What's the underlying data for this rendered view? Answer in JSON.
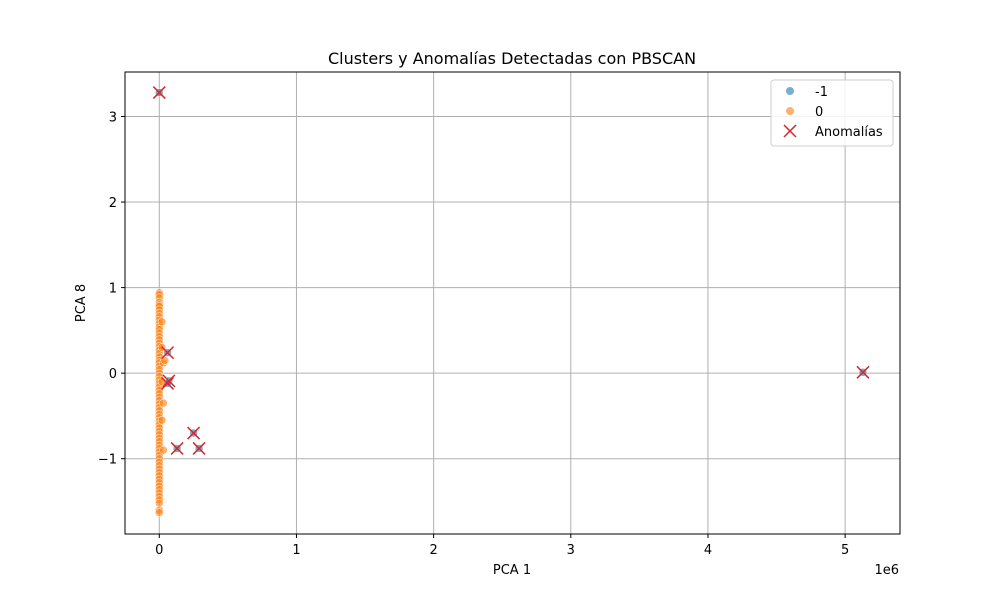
{
  "chart_data": {
    "type": "scatter",
    "title": "Clusters y Anomalías Detectadas con PBSCAN",
    "xlabel": "PCA 1",
    "ylabel": "PCA 8",
    "x_offset_text": "1e6",
    "xlim": [
      -0.25,
      5.4
    ],
    "ylim": [
      -1.88,
      3.52
    ],
    "x_ticks": [
      0,
      1,
      2,
      3,
      4,
      5
    ],
    "x_tick_labels": [
      "0",
      "1",
      "2",
      "3",
      "4",
      "5"
    ],
    "y_ticks": [
      -1,
      0,
      1,
      2,
      3
    ],
    "y_tick_labels": [
      "−1",
      "0",
      "1",
      "2",
      "3"
    ],
    "grid": true,
    "legend_position": "top-right",
    "series": [
      {
        "name": "-1",
        "marker": "circle",
        "color": "#1f77b4",
        "points": [
          [
            0.0,
            3.28
          ],
          [
            0.06,
            0.24
          ],
          [
            0.07,
            -0.09
          ],
          [
            0.06,
            -0.12
          ],
          [
            0.13,
            -0.88
          ],
          [
            0.25,
            -0.7
          ],
          [
            0.29,
            -0.88
          ],
          [
            5.13,
            0.01
          ]
        ]
      },
      {
        "name": "0",
        "marker": "circle",
        "color": "#ff7f0e",
        "points": [
          [
            0.0,
            0.94
          ],
          [
            0.0,
            0.92
          ],
          [
            0.0,
            0.88
          ],
          [
            0.0,
            0.83
          ],
          [
            0.0,
            0.8
          ],
          [
            0.0,
            0.78
          ],
          [
            0.0,
            0.74
          ],
          [
            0.0,
            0.7
          ],
          [
            0.0,
            0.66
          ],
          [
            0.0,
            0.62
          ],
          [
            0.0,
            0.58
          ],
          [
            0.0,
            0.54
          ],
          [
            0.0,
            0.51
          ],
          [
            0.0,
            0.47
          ],
          [
            0.0,
            0.43
          ],
          [
            0.0,
            0.39
          ],
          [
            0.0,
            0.35
          ],
          [
            0.0,
            0.31
          ],
          [
            0.0,
            0.27
          ],
          [
            0.0,
            0.23
          ],
          [
            0.0,
            0.19
          ],
          [
            0.0,
            0.15
          ],
          [
            0.0,
            0.12
          ],
          [
            0.0,
            0.08
          ],
          [
            0.0,
            0.04
          ],
          [
            0.0,
            0.0
          ],
          [
            0.0,
            -0.04
          ],
          [
            0.0,
            -0.08
          ],
          [
            0.0,
            -0.12
          ],
          [
            0.0,
            -0.16
          ],
          [
            0.0,
            -0.2
          ],
          [
            0.0,
            -0.24
          ],
          [
            0.0,
            -0.28
          ],
          [
            0.0,
            -0.32
          ],
          [
            0.0,
            -0.36
          ],
          [
            0.0,
            -0.4
          ],
          [
            0.0,
            -0.44
          ],
          [
            0.0,
            -0.48
          ],
          [
            0.0,
            -0.52
          ],
          [
            0.0,
            -0.56
          ],
          [
            0.0,
            -0.6
          ],
          [
            0.0,
            -0.64
          ],
          [
            0.0,
            -0.68
          ],
          [
            0.0,
            -0.72
          ],
          [
            0.0,
            -0.76
          ],
          [
            0.0,
            -0.8
          ],
          [
            0.0,
            -0.84
          ],
          [
            0.0,
            -0.88
          ],
          [
            0.0,
            -0.92
          ],
          [
            0.0,
            -0.96
          ],
          [
            0.0,
            -1.0
          ],
          [
            0.0,
            -1.04
          ],
          [
            0.0,
            -1.08
          ],
          [
            0.0,
            -1.12
          ],
          [
            0.0,
            -1.16
          ],
          [
            0.0,
            -1.2
          ],
          [
            0.0,
            -1.24
          ],
          [
            0.0,
            -1.28
          ],
          [
            0.0,
            -1.32
          ],
          [
            0.0,
            -1.36
          ],
          [
            0.0,
            -1.4
          ],
          [
            0.0,
            -1.44
          ],
          [
            0.0,
            -1.48
          ],
          [
            0.0,
            -1.52
          ],
          [
            0.0,
            -1.6
          ],
          [
            0.0,
            -1.63
          ],
          [
            0.02,
            0.3
          ],
          [
            0.03,
            0.12
          ],
          [
            0.02,
            -0.1
          ],
          [
            0.03,
            -0.35
          ],
          [
            0.02,
            -0.55
          ],
          [
            0.03,
            -0.9
          ],
          [
            0.02,
            0.6
          ],
          [
            0.04,
            0.15
          ]
        ]
      },
      {
        "name": "Anomalías",
        "marker": "x",
        "color": "#d62728",
        "points": [
          [
            0.0,
            3.28
          ],
          [
            0.06,
            0.24
          ],
          [
            0.07,
            -0.09
          ],
          [
            0.06,
            -0.12
          ],
          [
            0.13,
            -0.88
          ],
          [
            0.25,
            -0.7
          ],
          [
            0.29,
            -0.88
          ],
          [
            5.13,
            0.01
          ]
        ]
      }
    ]
  }
}
